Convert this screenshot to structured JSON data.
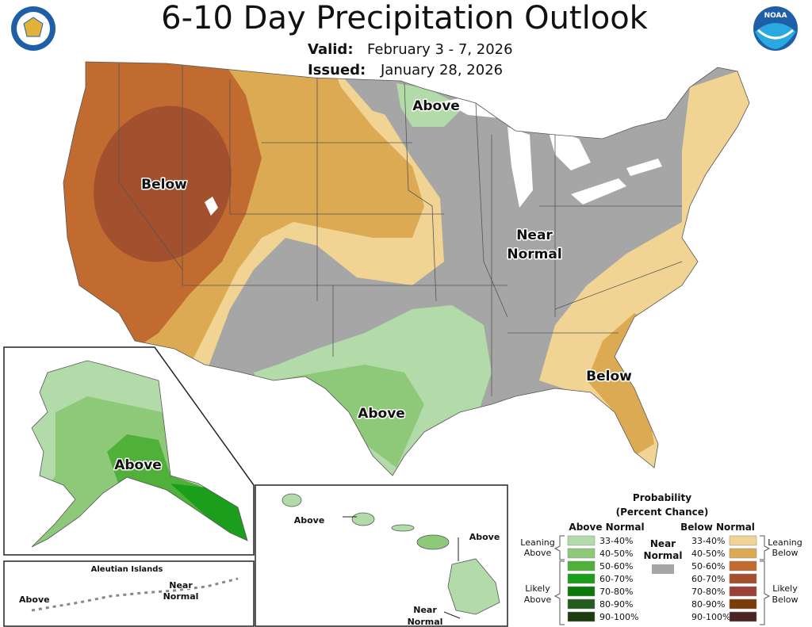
{
  "header": {
    "title": "6-10 Day Precipitation Outlook",
    "valid_label": "Valid:",
    "valid": "February 3 - 7, 2026",
    "issued_label": "Issued:",
    "issued": "January 28, 2026",
    "noaa_logo": "NOAA"
  },
  "conus": {
    "west": "Below",
    "minnesota": "Above",
    "central": [
      "Near",
      "Normal"
    ],
    "southeast": "Below",
    "texas": "Above"
  },
  "alaska": {
    "label": "Above"
  },
  "aleutians": {
    "title": "Aleutian Islands",
    "above": "Above",
    "near_normal": [
      "Near",
      "Normal"
    ]
  },
  "hawaii": {
    "northwest": "Above",
    "east": "Above",
    "south": [
      "Near",
      "Normal"
    ]
  },
  "legend": {
    "title": "Probability",
    "subtitle": "(Percent Chance)",
    "above": {
      "heading": "Above Normal",
      "leaning": [
        "Leaning",
        "Above"
      ],
      "likely": [
        "Likely",
        "Above"
      ],
      "bins": [
        {
          "label": "33-40%",
          "color": "#b3dba9"
        },
        {
          "label": "40-50%",
          "color": "#8ec97a"
        },
        {
          "label": "50-60%",
          "color": "#4fb03a"
        },
        {
          "label": "60-70%",
          "color": "#1b9e1b"
        },
        {
          "label": "70-80%",
          "color": "#0b7a0b"
        },
        {
          "label": "80-90%",
          "color": "#245b1f"
        },
        {
          "label": "90-100%",
          "color": "#1d3b0e"
        }
      ]
    },
    "near": {
      "heading": [
        "Near",
        "Normal"
      ],
      "color": "#a6a6a6"
    },
    "below": {
      "heading": "Below Normal",
      "leaning": [
        "Leaning",
        "Below"
      ],
      "likely": [
        "Likely",
        "Below"
      ],
      "bins": [
        {
          "label": "33-40%",
          "color": "#f1d494"
        },
        {
          "label": "40-50%",
          "color": "#ddaa54"
        },
        {
          "label": "50-60%",
          "color": "#c26b30"
        },
        {
          "label": "60-70%",
          "color": "#a3502f"
        },
        {
          "label": "70-80%",
          "color": "#9a4237"
        },
        {
          "label": "80-90%",
          "color": "#7a3d08"
        },
        {
          "label": "90-100%",
          "color": "#4b2424"
        }
      ]
    }
  }
}
